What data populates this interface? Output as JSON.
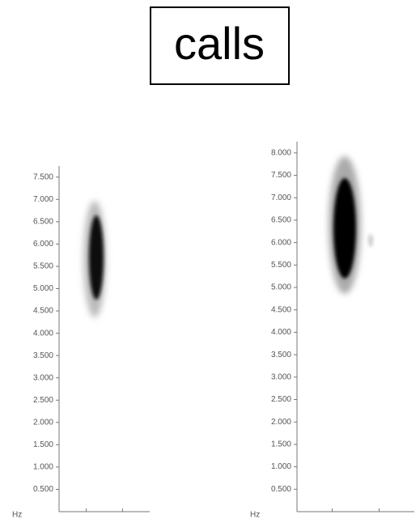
{
  "title": "calls",
  "chart_data": [
    {
      "type": "spectrogram",
      "ylabel": "Hz",
      "ylim": [
        0,
        7750
      ],
      "yticks": [
        {
          "value": 500,
          "label": "0.500"
        },
        {
          "value": 1000,
          "label": "1.000"
        },
        {
          "value": 1500,
          "label": "1.500"
        },
        {
          "value": 2000,
          "label": "2.000"
        },
        {
          "value": 2500,
          "label": "2.500"
        },
        {
          "value": 3000,
          "label": "3.000"
        },
        {
          "value": 3500,
          "label": "3.500"
        },
        {
          "value": 4000,
          "label": "4.000"
        },
        {
          "value": 4500,
          "label": "4.500"
        },
        {
          "value": 5000,
          "label": "5.000"
        },
        {
          "value": 5500,
          "label": "5.500"
        },
        {
          "value": 6000,
          "label": "6.000"
        },
        {
          "value": 6500,
          "label": "6.500"
        },
        {
          "value": 7000,
          "label": "7.000"
        },
        {
          "value": 7500,
          "label": "7.500"
        }
      ]
    },
    {
      "type": "spectrogram",
      "ylabel": "Hz",
      "ylim": [
        0,
        8250
      ],
      "yticks": [
        {
          "value": 500,
          "label": "0.500"
        },
        {
          "value": 1000,
          "label": "1.000"
        },
        {
          "value": 1500,
          "label": "1.500"
        },
        {
          "value": 2000,
          "label": "2.000"
        },
        {
          "value": 2500,
          "label": "2.500"
        },
        {
          "value": 3000,
          "label": "3.000"
        },
        {
          "value": 3500,
          "label": "3.500"
        },
        {
          "value": 4000,
          "label": "4.000"
        },
        {
          "value": 4500,
          "label": "4.500"
        },
        {
          "value": 5000,
          "label": "5.000"
        },
        {
          "value": 5500,
          "label": "5.500"
        },
        {
          "value": 6000,
          "label": "6.000"
        },
        {
          "value": 6500,
          "label": "6.500"
        },
        {
          "value": 7000,
          "label": "7.000"
        },
        {
          "value": 7500,
          "label": "7.500"
        },
        {
          "value": 8000,
          "label": "8.000"
        }
      ]
    }
  ]
}
